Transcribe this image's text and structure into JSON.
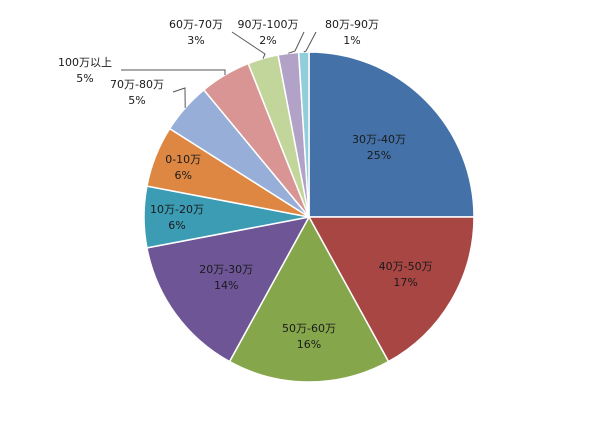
{
  "chart_data": {
    "type": "pie",
    "title": "",
    "legend": "none",
    "slices": [
      {
        "label": "30万-40万",
        "value": 25,
        "display": "25%",
        "color": "#4472A8"
      },
      {
        "label": "40万-50万",
        "value": 17,
        "display": "17%",
        "color": "#A84644"
      },
      {
        "label": "50万-60万",
        "value": 16,
        "display": "16%",
        "color": "#86A64B"
      },
      {
        "label": "20万-30万",
        "value": 14,
        "display": "14%",
        "color": "#6E5596"
      },
      {
        "label": "10万-20万",
        "value": 6,
        "display": "6%",
        "color": "#3C9CB4"
      },
      {
        "label": "0-10万",
        "value": 6,
        "display": "6%",
        "color": "#DD8742"
      },
      {
        "label": "70万-80万",
        "value": 5,
        "display": "5%",
        "color": "#97AFD8"
      },
      {
        "label": "100万以上",
        "value": 5,
        "display": "5%",
        "color": "#D99594"
      },
      {
        "label": "60万-70万",
        "value": 3,
        "display": "3%",
        "color": "#C2D69B"
      },
      {
        "label": "90万-100万",
        "value": 2,
        "display": "2%",
        "color": "#B2A2C7"
      },
      {
        "label": "80万-90万",
        "value": 1,
        "display": "1%",
        "color": "#92CDDC"
      }
    ]
  }
}
